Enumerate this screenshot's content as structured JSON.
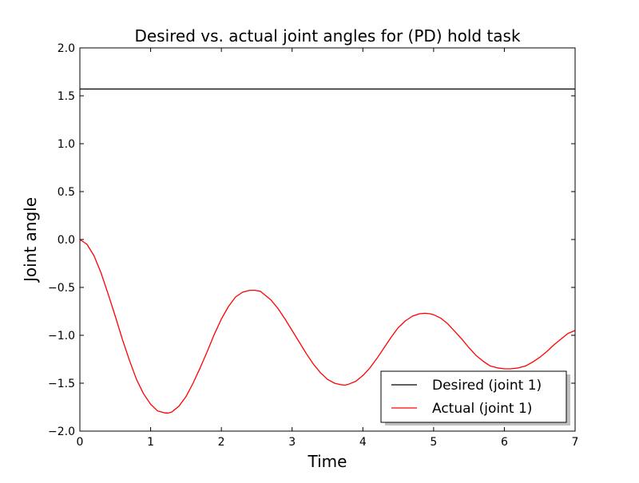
{
  "chart_data": {
    "type": "line",
    "title": "Desired vs. actual joint angles for (PD) hold task",
    "xlabel": "Time",
    "ylabel": "Joint angle",
    "xlim": [
      0,
      7
    ],
    "ylim": [
      -2.0,
      2.0
    ],
    "xticks": [
      "0",
      "1",
      "2",
      "3",
      "4",
      "5",
      "6",
      "7"
    ],
    "yticks": [
      "2.0",
      "1.5",
      "1.0",
      "0.5",
      "0.0",
      "−0.5",
      "−1.0",
      "−1.5",
      "−2.0"
    ],
    "grid": false,
    "legend_position": "lower-right",
    "series": [
      {
        "name": "Desired (joint 1)",
        "color": "#000000",
        "x": [
          0,
          7
        ],
        "y": [
          1.5708,
          1.5708
        ]
      },
      {
        "name": "Actual (joint 1)",
        "color": "#ff0000",
        "x": [
          0,
          0.1,
          0.2,
          0.3,
          0.4,
          0.5,
          0.6,
          0.7,
          0.8,
          0.9,
          1.0,
          1.1,
          1.2,
          1.25,
          1.3,
          1.4,
          1.5,
          1.6,
          1.7,
          1.8,
          1.9,
          2.0,
          2.1,
          2.2,
          2.3,
          2.4,
          2.47,
          2.55,
          2.6,
          2.7,
          2.8,
          2.9,
          3.0,
          3.1,
          3.2,
          3.3,
          3.4,
          3.5,
          3.6,
          3.68,
          3.75,
          3.8,
          3.9,
          4.0,
          4.1,
          4.2,
          4.3,
          4.4,
          4.5,
          4.6,
          4.7,
          4.8,
          4.88,
          4.95,
          5.0,
          5.1,
          5.2,
          5.3,
          5.4,
          5.5,
          5.6,
          5.7,
          5.8,
          5.9,
          6.0,
          6.08,
          6.15,
          6.2,
          6.3,
          6.4,
          6.5,
          6.6,
          6.7,
          6.8,
          6.9,
          7.0
        ],
        "y": [
          0.0,
          -0.05,
          -0.17,
          -0.35,
          -0.57,
          -0.8,
          -1.04,
          -1.26,
          -1.46,
          -1.61,
          -1.72,
          -1.79,
          -1.81,
          -1.812,
          -1.8,
          -1.74,
          -1.64,
          -1.5,
          -1.34,
          -1.17,
          -0.99,
          -0.83,
          -0.7,
          -0.6,
          -0.55,
          -0.53,
          -0.53,
          -0.54,
          -0.57,
          -0.63,
          -0.72,
          -0.83,
          -0.95,
          -1.07,
          -1.19,
          -1.3,
          -1.39,
          -1.46,
          -1.5,
          -1.515,
          -1.52,
          -1.51,
          -1.48,
          -1.42,
          -1.34,
          -1.24,
          -1.13,
          -1.02,
          -0.92,
          -0.85,
          -0.8,
          -0.775,
          -0.77,
          -0.775,
          -0.785,
          -0.82,
          -0.88,
          -0.96,
          -1.04,
          -1.13,
          -1.21,
          -1.27,
          -1.32,
          -1.34,
          -1.35,
          -1.35,
          -1.345,
          -1.34,
          -1.32,
          -1.28,
          -1.23,
          -1.17,
          -1.1,
          -1.04,
          -0.98,
          -0.95
        ]
      }
    ]
  }
}
